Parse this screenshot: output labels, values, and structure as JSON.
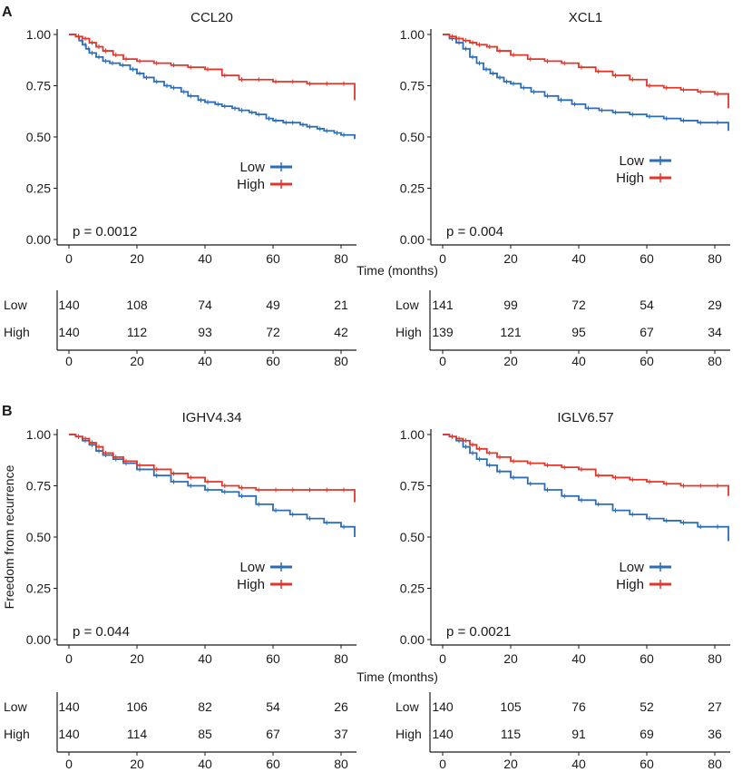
{
  "figure": {
    "section_labels": [
      {
        "id": "A",
        "text": "A"
      },
      {
        "id": "B",
        "text": "B"
      }
    ],
    "shared_xlabel": "Time (months)",
    "shared_ylabel": "Freedom from recurrence",
    "colors": {
      "Low": "#2b6db6",
      "High": "#e0372b",
      "axis": "#1a1a1a"
    }
  },
  "chart_data": [
    {
      "type": "line",
      "subtype": "kaplan-meier",
      "section": "A",
      "title": "CCL20",
      "xlabel": "Time (months)",
      "ylabel": "",
      "xlim": [
        0,
        84
      ],
      "ylim": [
        0,
        1
      ],
      "x_ticks": [
        "0",
        "20",
        "40",
        "60",
        "80"
      ],
      "y_ticks": [
        "0.00",
        "0.25",
        "0.50",
        "0.75",
        "1.00"
      ],
      "p_value": "p = 0.0012",
      "legend": [
        "Low",
        "High"
      ],
      "series": [
        {
          "name": "Low",
          "x": [
            0,
            2,
            3,
            4,
            5,
            6,
            8,
            10,
            12,
            15,
            18,
            20,
            22,
            25,
            28,
            30,
            33,
            35,
            38,
            40,
            43,
            45,
            48,
            50,
            53,
            55,
            58,
            60,
            63,
            65,
            68,
            70,
            73,
            75,
            78,
            80,
            84
          ],
          "y": [
            1.0,
            0.99,
            0.97,
            0.95,
            0.93,
            0.91,
            0.89,
            0.87,
            0.86,
            0.85,
            0.83,
            0.81,
            0.79,
            0.77,
            0.75,
            0.74,
            0.72,
            0.7,
            0.68,
            0.67,
            0.66,
            0.65,
            0.64,
            0.63,
            0.62,
            0.61,
            0.59,
            0.58,
            0.57,
            0.57,
            0.56,
            0.55,
            0.54,
            0.53,
            0.52,
            0.51,
            0.49
          ]
        },
        {
          "name": "High",
          "x": [
            0,
            2,
            4,
            6,
            8,
            10,
            13,
            16,
            20,
            25,
            30,
            35,
            40,
            45,
            50,
            55,
            60,
            65,
            70,
            75,
            80,
            84
          ],
          "y": [
            1.0,
            0.99,
            0.98,
            0.96,
            0.94,
            0.92,
            0.9,
            0.88,
            0.87,
            0.86,
            0.85,
            0.84,
            0.83,
            0.8,
            0.78,
            0.78,
            0.77,
            0.77,
            0.76,
            0.76,
            0.76,
            0.68
          ]
        }
      ],
      "risk_table": {
        "rows": [
          {
            "label": "Low",
            "values": [
              "140",
              "108",
              "74",
              "49",
              "21"
            ]
          },
          {
            "label": "High",
            "values": [
              "140",
              "112",
              "93",
              "72",
              "42"
            ]
          }
        ],
        "x_ticks": [
          "0",
          "20",
          "40",
          "60",
          "80"
        ]
      }
    },
    {
      "type": "line",
      "subtype": "kaplan-meier",
      "section": "A",
      "title": "XCL1",
      "xlabel": "Time (months)",
      "ylabel": "",
      "xlim": [
        0,
        84
      ],
      "ylim": [
        0,
        1
      ],
      "x_ticks": [
        "0",
        "20",
        "40",
        "60",
        "80"
      ],
      "y_ticks": [
        "0.00",
        "0.25",
        "0.50",
        "0.75",
        "1.00"
      ],
      "p_value": "p = 0.004",
      "legend": [
        "Low",
        "High"
      ],
      "series": [
        {
          "name": "Low",
          "x": [
            0,
            2,
            4,
            6,
            8,
            10,
            12,
            14,
            16,
            18,
            20,
            23,
            26,
            30,
            34,
            38,
            42,
            46,
            50,
            55,
            60,
            65,
            70,
            75,
            80,
            84
          ],
          "y": [
            1.0,
            0.98,
            0.96,
            0.93,
            0.89,
            0.86,
            0.83,
            0.81,
            0.79,
            0.77,
            0.76,
            0.74,
            0.72,
            0.7,
            0.68,
            0.66,
            0.64,
            0.63,
            0.62,
            0.61,
            0.6,
            0.59,
            0.58,
            0.57,
            0.57,
            0.53
          ]
        },
        {
          "name": "High",
          "x": [
            0,
            2,
            4,
            6,
            8,
            10,
            13,
            16,
            20,
            25,
            30,
            35,
            40,
            45,
            50,
            55,
            60,
            65,
            70,
            75,
            80,
            84
          ],
          "y": [
            1.0,
            0.99,
            0.98,
            0.97,
            0.96,
            0.95,
            0.94,
            0.92,
            0.9,
            0.88,
            0.87,
            0.86,
            0.84,
            0.82,
            0.8,
            0.78,
            0.75,
            0.74,
            0.73,
            0.72,
            0.71,
            0.64
          ]
        }
      ],
      "risk_table": {
        "rows": [
          {
            "label": "Low",
            "values": [
              "141",
              "99",
              "72",
              "54",
              "29"
            ]
          },
          {
            "label": "High",
            "values": [
              "139",
              "121",
              "95",
              "67",
              "34"
            ]
          }
        ],
        "x_ticks": [
          "0",
          "20",
          "40",
          "60",
          "80"
        ]
      }
    },
    {
      "type": "line",
      "subtype": "kaplan-meier",
      "section": "B",
      "title": "IGHV4.34",
      "xlabel": "Time (months)",
      "ylabel": "Freedom from recurrence",
      "xlim": [
        0,
        84
      ],
      "ylim": [
        0,
        1
      ],
      "x_ticks": [
        "0",
        "20",
        "40",
        "60",
        "80"
      ],
      "y_ticks": [
        "0.00",
        "0.25",
        "0.50",
        "0.75",
        "1.00"
      ],
      "p_value": "p = 0.044",
      "legend": [
        "Low",
        "High"
      ],
      "series": [
        {
          "name": "Low",
          "x": [
            0,
            2,
            4,
            6,
            8,
            10,
            13,
            16,
            20,
            25,
            30,
            35,
            40,
            45,
            50,
            55,
            60,
            65,
            70,
            75,
            80,
            84
          ],
          "y": [
            1.0,
            0.99,
            0.97,
            0.95,
            0.92,
            0.9,
            0.88,
            0.86,
            0.83,
            0.8,
            0.77,
            0.75,
            0.73,
            0.72,
            0.7,
            0.66,
            0.63,
            0.61,
            0.59,
            0.57,
            0.55,
            0.5
          ]
        },
        {
          "name": "High",
          "x": [
            0,
            2,
            4,
            6,
            8,
            10,
            13,
            16,
            20,
            25,
            30,
            35,
            40,
            45,
            50,
            55,
            60,
            65,
            70,
            75,
            80,
            84
          ],
          "y": [
            1.0,
            0.99,
            0.98,
            0.96,
            0.94,
            0.91,
            0.89,
            0.87,
            0.85,
            0.83,
            0.81,
            0.79,
            0.77,
            0.75,
            0.74,
            0.73,
            0.73,
            0.73,
            0.73,
            0.73,
            0.73,
            0.67
          ]
        }
      ],
      "risk_table": {
        "rows": [
          {
            "label": "Low",
            "values": [
              "140",
              "106",
              "82",
              "54",
              "26"
            ]
          },
          {
            "label": "High",
            "values": [
              "140",
              "114",
              "85",
              "67",
              "37"
            ]
          }
        ],
        "x_ticks": [
          "0",
          "20",
          "40",
          "60",
          "80"
        ]
      }
    },
    {
      "type": "line",
      "subtype": "kaplan-meier",
      "section": "B",
      "title": "IGLV6.57",
      "xlabel": "Time (months)",
      "ylabel": "",
      "xlim": [
        0,
        84
      ],
      "ylim": [
        0,
        1
      ],
      "x_ticks": [
        "0",
        "20",
        "40",
        "60",
        "80"
      ],
      "y_ticks": [
        "0.00",
        "0.25",
        "0.50",
        "0.75",
        "1.00"
      ],
      "p_value": "p = 0.0021",
      "legend": [
        "Low",
        "High"
      ],
      "series": [
        {
          "name": "Low",
          "x": [
            0,
            2,
            4,
            6,
            8,
            10,
            13,
            16,
            20,
            25,
            30,
            35,
            40,
            45,
            50,
            55,
            60,
            65,
            70,
            75,
            80,
            84
          ],
          "y": [
            1.0,
            0.99,
            0.97,
            0.94,
            0.91,
            0.88,
            0.85,
            0.82,
            0.79,
            0.76,
            0.73,
            0.7,
            0.68,
            0.66,
            0.63,
            0.61,
            0.59,
            0.58,
            0.57,
            0.55,
            0.55,
            0.48
          ]
        },
        {
          "name": "High",
          "x": [
            0,
            2,
            4,
            6,
            8,
            10,
            13,
            16,
            20,
            25,
            30,
            35,
            40,
            45,
            50,
            55,
            60,
            65,
            70,
            75,
            80,
            84
          ],
          "y": [
            1.0,
            0.99,
            0.98,
            0.97,
            0.95,
            0.93,
            0.91,
            0.89,
            0.87,
            0.86,
            0.85,
            0.84,
            0.83,
            0.8,
            0.79,
            0.78,
            0.77,
            0.76,
            0.75,
            0.75,
            0.75,
            0.7
          ]
        }
      ],
      "risk_table": {
        "rows": [
          {
            "label": "Low",
            "values": [
              "140",
              "105",
              "76",
              "52",
              "27"
            ]
          },
          {
            "label": "High",
            "values": [
              "140",
              "115",
              "91",
              "69",
              "36"
            ]
          }
        ],
        "x_ticks": [
          "0",
          "20",
          "40",
          "60",
          "80"
        ]
      }
    }
  ]
}
